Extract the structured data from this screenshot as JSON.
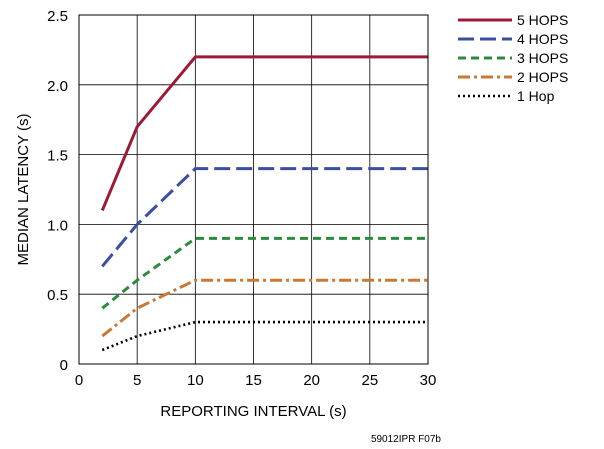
{
  "chart_data": {
    "type": "line",
    "title": "",
    "xlabel": "REPORTING INTERVAL (s)",
    "ylabel": "MEDIAN LATENCY (s)",
    "xlim": [
      0,
      30
    ],
    "ylim": [
      0,
      2.5
    ],
    "x_ticks": [
      0,
      5,
      10,
      15,
      20,
      25,
      30
    ],
    "y_ticks": [
      "0",
      "0.5",
      "1.0",
      "1.5",
      "2.0",
      "2.5"
    ],
    "grid": true,
    "legend_position": "top-right-outside",
    "x": [
      2,
      5,
      10,
      30
    ],
    "series": [
      {
        "name": "5 HOPS",
        "values": [
          1.1,
          1.7,
          2.2,
          2.2
        ],
        "color": "#9b1b36",
        "dash": "solid"
      },
      {
        "name": "4 HOPS",
        "values": [
          0.7,
          1.0,
          1.4,
          1.4
        ],
        "color": "#3b4fa0",
        "dash": "long-dash"
      },
      {
        "name": "3 HOPS",
        "values": [
          0.4,
          0.6,
          0.9,
          0.9
        ],
        "color": "#2e8b3e",
        "dash": "dash"
      },
      {
        "name": "2 HOPS",
        "values": [
          0.2,
          0.4,
          0.6,
          0.6
        ],
        "color": "#c87a35",
        "dash": "dash-dot"
      },
      {
        "name": "1 Hop",
        "values": [
          0.1,
          0.2,
          0.3,
          0.3
        ],
        "color": "#000000",
        "dash": "dotted"
      }
    ],
    "figure_id": "59012IPR F07b"
  }
}
